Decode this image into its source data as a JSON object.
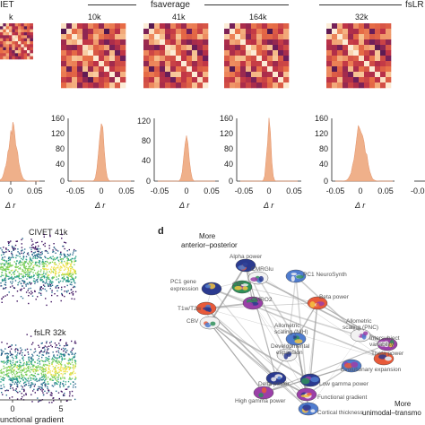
{
  "header": {
    "civet_label": "IET",
    "fsaverage_label": "fsaverage",
    "fslr_label": "fsLR",
    "res_k": "k",
    "res_10k": "10k",
    "res_41k": "41k",
    "res_164k": "164k",
    "res_32k": "32k"
  },
  "histograms": {
    "y_ticks_a": [
      "160",
      "120",
      "80",
      "40",
      "0"
    ],
    "y_ticks_b": [
      "160",
      "120",
      "80",
      "40",
      "0"
    ],
    "y_ticks_c": [
      "120",
      "80",
      "40",
      "0"
    ],
    "y_ticks_d": [
      "160",
      "120",
      "80",
      "40",
      "0"
    ],
    "x_ticks_partial": [
      "0",
      "0.05"
    ],
    "x_ticks_full": [
      "-0.05",
      "0",
      "0.05"
    ],
    "x_tick_neg": "-0.05",
    "xlabel": "Δ r"
  },
  "scatter": {
    "title_top": "CIVET 41k",
    "title_bottom": "fsLR 32k",
    "x_ticks": [
      "0",
      "5"
    ],
    "xlabel": "unctional gradient"
  },
  "network": {
    "panel_letter": "d",
    "top_label_line1": "More",
    "top_label_line2": "anterior–posterior",
    "bottom_label_line1": "More",
    "bottom_label_line2": "unimodal–transmo",
    "nodes": [
      "Alpha power",
      "CMRGlu",
      "PC1 NeuroSynth",
      "PC1 gene",
      "expression",
      "CBF",
      "T1w/T2w",
      "CMRO2",
      "CBV",
      "Beta power",
      "Allometric",
      "scaling (NIH)",
      "Allometric",
      "scaling (PNC)",
      "Intersubject",
      "variability",
      "Developmental",
      "expansion",
      "Theta power",
      "Evolutionary expansion",
      "Delta power",
      "Low gamma power",
      "High gamma power",
      "Functional gradient",
      "Cortical thickness"
    ]
  },
  "colors": {
    "hist_fill": "#efb08a",
    "hist_line": "#e39066",
    "edge": "#9a9a9a"
  }
}
